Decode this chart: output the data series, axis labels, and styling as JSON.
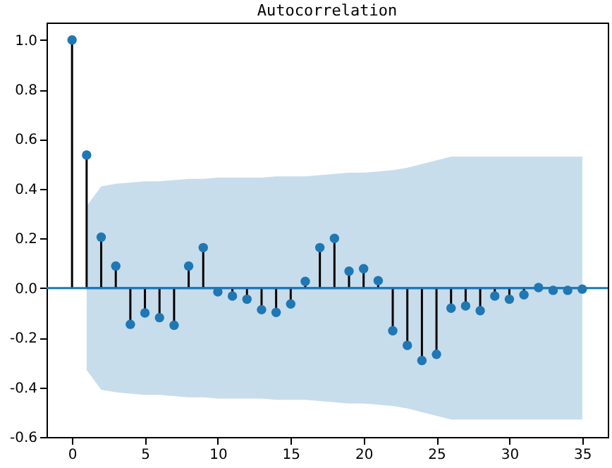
{
  "chart_data": {
    "type": "lollipop",
    "title": "Autocorrelation",
    "x": [
      0,
      1,
      2,
      3,
      4,
      5,
      6,
      7,
      8,
      9,
      10,
      11,
      12,
      13,
      14,
      15,
      16,
      17,
      18,
      19,
      20,
      21,
      22,
      23,
      24,
      25,
      26,
      27,
      28,
      29,
      30,
      31,
      32,
      33,
      34,
      35
    ],
    "xlim": [
      -1.75,
      36.75
    ],
    "xticks": [
      0,
      5,
      10,
      15,
      20,
      25,
      30,
      35
    ],
    "ylim": [
      -0.6,
      1.07
    ],
    "yticks": [
      {
        "value": -0.6,
        "label": "-0.6"
      },
      {
        "value": -0.4,
        "label": "-0.4"
      },
      {
        "value": -0.2,
        "label": "-0.2"
      },
      {
        "value": 0,
        "label": "0.0"
      },
      {
        "value": 0.2,
        "label": "0.2"
      },
      {
        "value": 0.4,
        "label": "0.4"
      },
      {
        "value": 0.6,
        "label": "0.6"
      },
      {
        "value": 0.8,
        "label": "0.8"
      },
      {
        "value": 1,
        "label": "1.0"
      }
    ],
    "marker": "circle",
    "ref_lines": [
      {
        "axis": "y",
        "value": 0,
        "color": "#1f77b4"
      }
    ],
    "series": [
      {
        "type": "line",
        "color": "#1f77b4",
        "marker": "none",
        "values": [
          0,
          0,
          0,
          0,
          0,
          0,
          0,
          0,
          0,
          0,
          0,
          0,
          0,
          0,
          0,
          0,
          0,
          0,
          0,
          0,
          0,
          0,
          0,
          0,
          0,
          0,
          0,
          0,
          0,
          0,
          0,
          0,
          0,
          0,
          0
        ],
        "x": [
          1,
          2,
          3,
          4,
          5,
          6,
          7,
          8,
          9,
          10,
          11,
          12,
          13,
          14,
          15,
          16,
          17,
          18,
          19,
          20,
          21,
          22,
          23,
          24,
          25,
          26,
          27,
          28,
          29,
          30,
          31,
          32,
          33,
          34,
          35
        ],
        "lower": [
          -0.33,
          -0.41,
          -0.42,
          -0.425,
          -0.43,
          -0.43,
          -0.435,
          -0.44,
          -0.44,
          -0.445,
          -0.445,
          -0.445,
          -0.445,
          -0.45,
          -0.45,
          -0.45,
          -0.455,
          -0.46,
          -0.465,
          -0.465,
          -0.47,
          -0.475,
          -0.485,
          -0.5,
          -0.515,
          -0.53,
          -0.53,
          -0.53,
          -0.53,
          -0.53,
          -0.53,
          -0.53,
          -0.53,
          -0.53,
          -0.53
        ],
        "upper": [
          0.33,
          0.41,
          0.42,
          0.425,
          0.43,
          0.43,
          0.435,
          0.44,
          0.44,
          0.445,
          0.445,
          0.445,
          0.445,
          0.45,
          0.45,
          0.45,
          0.455,
          0.46,
          0.465,
          0.465,
          0.47,
          0.475,
          0.485,
          0.5,
          0.515,
          0.53,
          0.53,
          0.53,
          0.53,
          0.53,
          0.53,
          0.53,
          0.53,
          0.53,
          0.53
        ]
      },
      {
        "color": "#1f77b4",
        "values": [
          1.0,
          0.536,
          0.205,
          0.089,
          -0.146,
          -0.1,
          -0.119,
          -0.15,
          0.089,
          0.163,
          -0.015,
          -0.032,
          -0.045,
          -0.087,
          -0.098,
          -0.064,
          0.027,
          0.163,
          0.2,
          0.068,
          0.078,
          0.03,
          -0.172,
          -0.231,
          -0.292,
          -0.267,
          -0.081,
          -0.072,
          -0.091,
          -0.032,
          -0.045,
          -0.027,
          0.002,
          -0.009,
          -0.009,
          -0.004
        ]
      }
    ]
  }
}
